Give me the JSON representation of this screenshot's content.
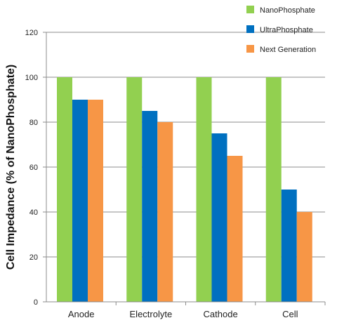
{
  "chart_data": {
    "type": "bar",
    "title": "",
    "xlabel": "",
    "ylabel": "Cell Impedance (% of NanoPhosphate)",
    "ylim": [
      0,
      120
    ],
    "yticks": [
      "0",
      "20",
      "40",
      "60",
      "80",
      "100",
      "120"
    ],
    "grid": true,
    "legend_position": "top-right",
    "categories": [
      "Anode",
      "Electrolyte",
      "Cathode",
      "Cell"
    ],
    "series": [
      {
        "name": "NanoPhosphate",
        "color": "#92D050",
        "values": [
          100,
          100,
          100,
          100
        ]
      },
      {
        "name": "UltraPhosphate",
        "color": "#0070C0",
        "values": [
          90,
          85,
          75,
          50
        ]
      },
      {
        "name": "Next Generation",
        "color": "#F79646",
        "values": [
          90,
          80,
          65,
          40
        ]
      }
    ]
  }
}
